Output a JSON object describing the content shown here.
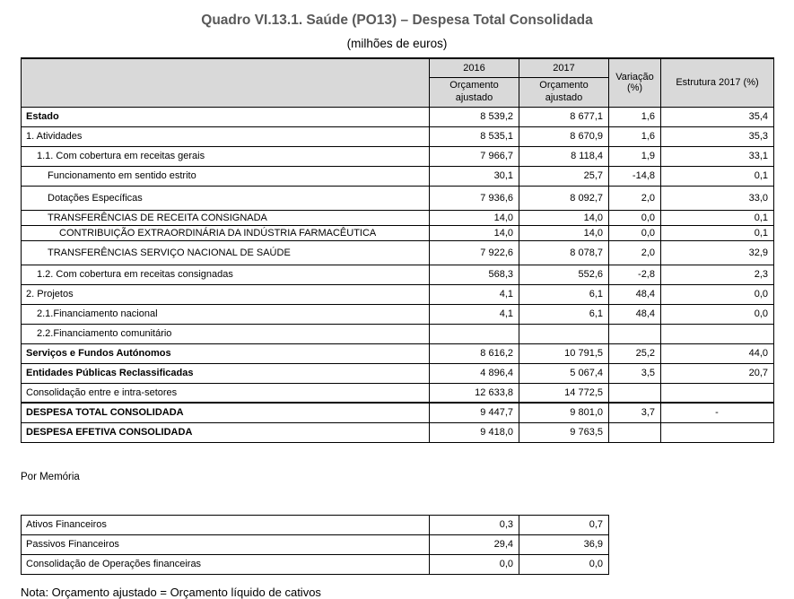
{
  "title": "Quadro VI.13.1. Saúde (PO13) – Despesa Total Consolidada",
  "subtitle": "(milhões de euros)",
  "colors": {
    "header_fill": "#d9d9d9",
    "title_text": "#595959",
    "grid_line": "#000000"
  },
  "main_table": {
    "header": {
      "col_2016": "2016",
      "col_2017": "2017",
      "sub_2016": "Orçamento ajustado",
      "sub_2017": "Orçamento ajustado",
      "variacao_line1": "Variação",
      "variacao_line2": "(%)",
      "estrutura": "Estrutura 2017 (%)"
    },
    "rows": [
      {
        "label": "Estado",
        "v2016": "8 539,2",
        "v2017": "8 677,1",
        "var": "1,6",
        "estr": "35,4",
        "bold": true,
        "indent": 0
      },
      {
        "label": "1. Atividades",
        "v2016": "8 535,1",
        "v2017": "8 670,9",
        "var": "1,6",
        "estr": "35,3",
        "indent": 0
      },
      {
        "label": "1.1. Com cobertura em receitas gerais",
        "v2016": "7 966,7",
        "v2017": "8 118,4",
        "var": "1,9",
        "estr": "33,1",
        "indent": 1
      },
      {
        "label": "Funcionamento em sentido estrito",
        "v2016": "30,1",
        "v2017": "25,7",
        "var": "-14,8",
        "estr": "0,1",
        "indent": 2
      },
      {
        "label": "Dotações Específicas",
        "v2016": "7 936,6",
        "v2017": "8 092,7",
        "var": "2,0",
        "estr": "33,0",
        "indent": 2,
        "size": "tall"
      },
      {
        "label": "TRANSFERÊNCIAS DE RECEITA CONSIGNADA",
        "v2016": "14,0",
        "v2017": "14,0",
        "var": "0,0",
        "estr": "0,1",
        "indent": 2,
        "size": "compact"
      },
      {
        "label": "CONTRIBUIÇÃO EXTRAORDINÁRIA DA INDÚSTRIA FARMACÊUTICA",
        "v2016": "14,0",
        "v2017": "14,0",
        "var": "0,0",
        "estr": "0,1",
        "indent": 3,
        "size": "compact"
      },
      {
        "label": "TRANSFERÊNCIAS SERVIÇO NACIONAL DE SAÚDE",
        "v2016": "7 922,6",
        "v2017": "8 078,7",
        "var": "2,0",
        "estr": "32,9",
        "indent": 2,
        "size": "tall"
      },
      {
        "label": "1.2. Com cobertura em receitas consignadas",
        "v2016": "568,3",
        "v2017": "552,6",
        "var": "-2,8",
        "estr": "2,3",
        "indent": 1
      },
      {
        "label": "2. Projetos",
        "v2016": "4,1",
        "v2017": "6,1",
        "var": "48,4",
        "estr": "0,0",
        "indent": 0
      },
      {
        "label": "2.1.Financiamento nacional",
        "v2016": "4,1",
        "v2017": "6,1",
        "var": "48,4",
        "estr": "0,0",
        "indent": 1
      },
      {
        "label": "2.2.Financiamento comunitário",
        "v2016": "",
        "v2017": "",
        "var": "",
        "estr": "",
        "indent": 1
      },
      {
        "label": "Serviços e Fundos Autónomos",
        "v2016": "8 616,2",
        "v2017": "10 791,5",
        "var": "25,2",
        "estr": "44,0",
        "bold": true,
        "indent": 0
      },
      {
        "label": "Entidades Públicas Reclassificadas",
        "v2016": "4 896,4",
        "v2017": "5 067,4",
        "var": "3,5",
        "estr": "20,7",
        "bold": true,
        "indent": 0
      },
      {
        "label": "Consolidação entre e intra-setores",
        "v2016": "12 633,8",
        "v2017": "14 772,5",
        "var": "",
        "estr": "",
        "indent": 0
      },
      {
        "label": "DESPESA TOTAL CONSOLIDADA",
        "v2016": "9 447,7",
        "v2017": "9 801,0",
        "var": "3,7",
        "estr": "-",
        "bold": true,
        "indent": 0,
        "thick_top": true
      },
      {
        "label": "DESPESA EFETIVA CONSOLIDADA",
        "v2016": "9 418,0",
        "v2017": "9 763,5",
        "var": "",
        "estr": "",
        "bold": true,
        "indent": 0
      }
    ]
  },
  "por_memoria": "Por Memória",
  "memoria_table": {
    "rows": [
      {
        "label": "Ativos Financeiros",
        "v2016": "0,3",
        "v2017": "0,7"
      },
      {
        "label": "Passivos Financeiros",
        "v2016": "29,4",
        "v2017": "36,9"
      },
      {
        "label": "Consolidação de Operações financeiras",
        "v2016": "0,0",
        "v2017": "0,0"
      }
    ]
  },
  "note": "Nota: Orçamento ajustado = Orçamento líquido de cativos"
}
